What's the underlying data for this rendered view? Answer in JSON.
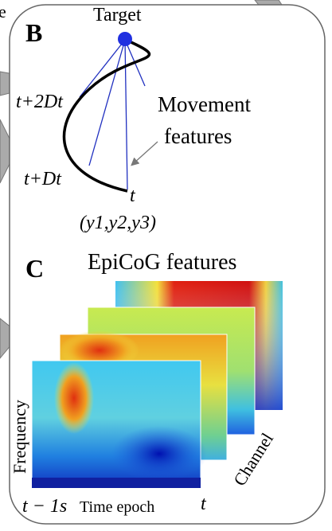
{
  "panel_b": {
    "edge_text": "e",
    "label": "B",
    "target": "Target",
    "t_plus_2dt": "t+2Dt",
    "t_plus_dt": "t+Dt",
    "t": "t",
    "output": "(y1,y2,y3)",
    "movement_features": [
      "Movement",
      "features"
    ]
  },
  "panel_c": {
    "label": "C",
    "title": "EpiCoG features",
    "y_axis": "Frequency",
    "depth_axis": "Channel",
    "x_start": "t − 1s",
    "x_axis": "Time epoch",
    "x_end": "t"
  }
}
